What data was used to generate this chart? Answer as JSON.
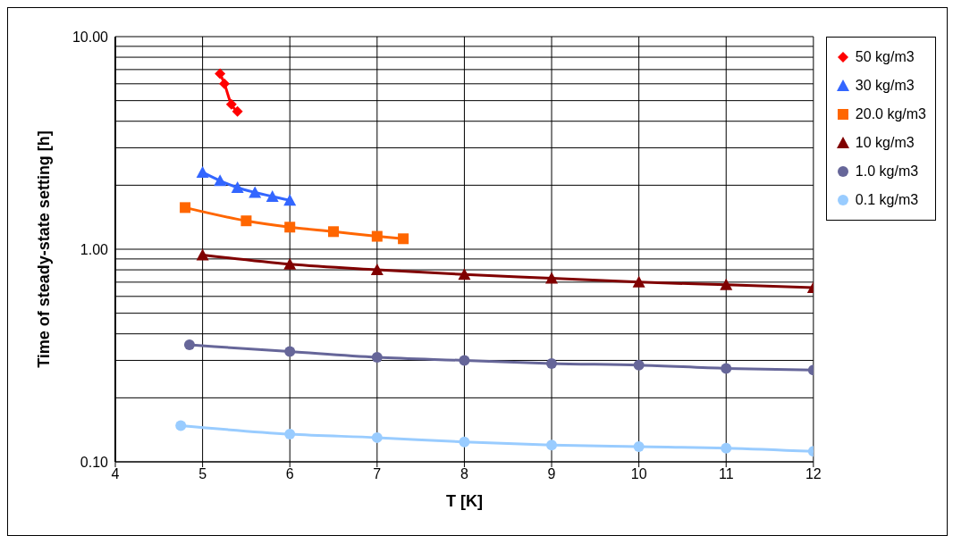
{
  "chart_data": {
    "type": "line",
    "xlabel": "T [K]",
    "ylabel": "Time of steady-state setting [h]",
    "log": "y",
    "grid": true,
    "legend": "right",
    "line_style": "solid",
    "xlim": [
      4,
      12
    ],
    "xticks": [
      4,
      5,
      6,
      7,
      8,
      9,
      10,
      11,
      12
    ],
    "ylim": [
      0.1,
      10
    ],
    "yticks": [
      {
        "value": 0.1,
        "label": "0.10"
      },
      {
        "value": 0.2,
        "label": null
      },
      {
        "value": 0.3,
        "label": null
      },
      {
        "value": 0.4,
        "label": null
      },
      {
        "value": 0.5,
        "label": null
      },
      {
        "value": 0.6,
        "label": null
      },
      {
        "value": 0.7,
        "label": null
      },
      {
        "value": 0.8,
        "label": null
      },
      {
        "value": 0.9,
        "label": null
      },
      {
        "value": 1,
        "label": "1.00"
      },
      {
        "value": 2,
        "label": null
      },
      {
        "value": 3,
        "label": null
      },
      {
        "value": 4,
        "label": null
      },
      {
        "value": 5,
        "label": null
      },
      {
        "value": 6,
        "label": null
      },
      {
        "value": 7,
        "label": null
      },
      {
        "value": 8,
        "label": null
      },
      {
        "value": 9,
        "label": null
      },
      {
        "value": 10,
        "label": "10.00"
      }
    ],
    "series": [
      {
        "name": "50 kg/m3",
        "color": "#ff0000",
        "marker": "diamond",
        "x": [
          5.2,
          5.25,
          5.33,
          5.4
        ],
        "values": [
          6.7,
          6.0,
          4.8,
          4.45
        ]
      },
      {
        "name": "30  kg/m3",
        "color": "#3366ff",
        "marker": "triangle",
        "x": [
          5,
          5.2,
          5.4,
          5.6,
          5.8,
          6
        ],
        "values": [
          2.3,
          2.1,
          1.95,
          1.85,
          1.77,
          1.7
        ]
      },
      {
        "name": "20.0  kg/m3",
        "color": "#ff6600",
        "marker": "square",
        "x": [
          4.8,
          5.5,
          6,
          6.5,
          7,
          7.3
        ],
        "values": [
          1.57,
          1.36,
          1.27,
          1.21,
          1.15,
          1.12
        ]
      },
      {
        "name": "10  kg/m3",
        "color": "#800000",
        "marker": "triangle",
        "x": [
          5,
          6,
          7,
          8,
          9,
          10,
          11,
          12
        ],
        "values": [
          0.94,
          0.85,
          0.8,
          0.76,
          0.73,
          0.7,
          0.68,
          0.66
        ]
      },
      {
        "name": "1.0  kg/m3",
        "color": "#666699",
        "marker": "circle",
        "x": [
          4.85,
          6,
          7,
          8,
          9,
          10,
          11,
          12
        ],
        "values": [
          0.355,
          0.33,
          0.31,
          0.3,
          0.29,
          0.285,
          0.275,
          0.27
        ]
      },
      {
        "name": "0.1  kg/m3",
        "color": "#99ccff",
        "marker": "circle",
        "x": [
          4.75,
          6,
          7,
          8,
          9,
          10,
          11,
          12
        ],
        "values": [
          0.148,
          0.135,
          0.13,
          0.124,
          0.12,
          0.118,
          0.116,
          0.112
        ]
      }
    ]
  }
}
